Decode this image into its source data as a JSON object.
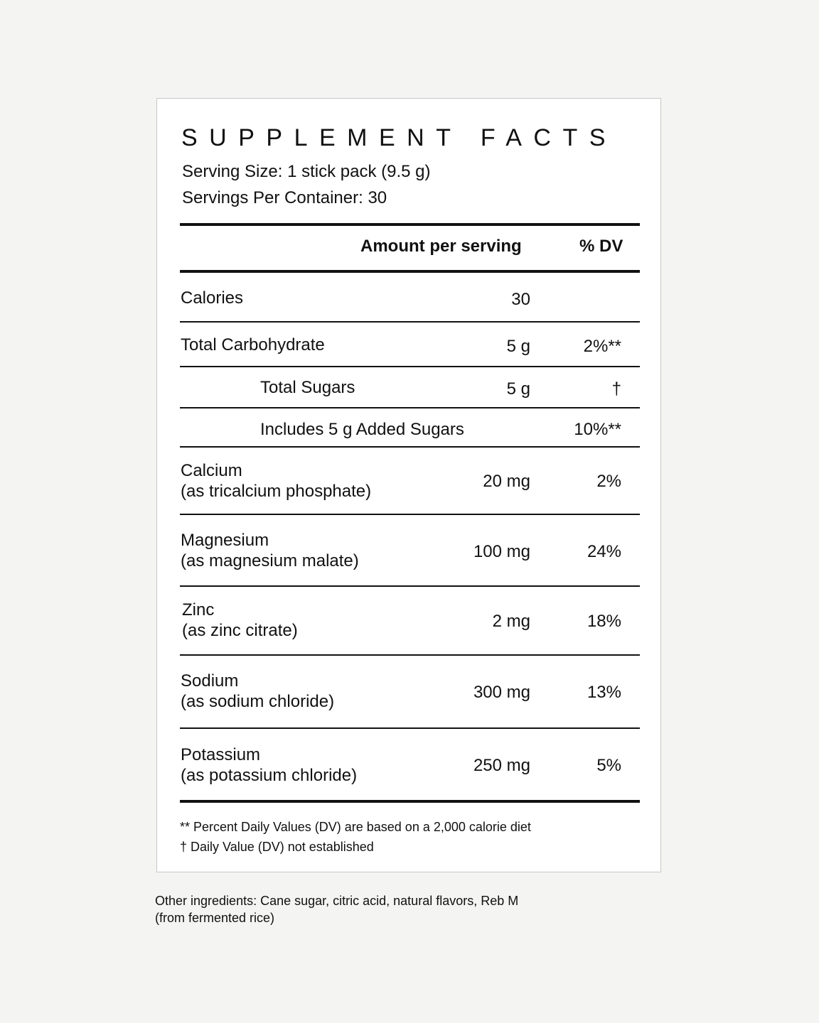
{
  "title": "SUPPLEMENT FACTS",
  "serving_size": "Serving Size: 1 stick pack (9.5 g)",
  "servings_per_container": "Servings Per Container: 30",
  "header": {
    "amount": "Amount per serving",
    "dv": "% DV"
  },
  "rows": [
    {
      "name": "Calories",
      "amount": "30",
      "dv": ""
    },
    {
      "name": "Total Carbohydrate",
      "amount": "5 g",
      "dv": "2%**"
    },
    {
      "name": "Total Sugars",
      "amount": "5 g",
      "dv": "†"
    },
    {
      "name": "Includes 5 g Added Sugars",
      "amount": "",
      "dv": "10%**"
    },
    {
      "name": "Calcium",
      "sub": "(as tricalcium phosphate)",
      "amount": "20 mg",
      "dv": "2%"
    },
    {
      "name": "Magnesium",
      "sub": "(as magnesium malate)",
      "amount": "100 mg",
      "dv": "24%"
    },
    {
      "name": "Zinc",
      "sub": "(as zinc citrate)",
      "amount": "2 mg",
      "dv": "18%"
    },
    {
      "name": "Sodium",
      "sub": "(as sodium chloride)",
      "amount": "300 mg",
      "dv": "13%"
    },
    {
      "name": "Potassium",
      "sub": "(as potassium chloride)",
      "amount": "250 mg",
      "dv": "5%"
    }
  ],
  "footnotes": {
    "dv_basis": "** Percent Daily Values (DV) are based on a 2,000 calorie diet",
    "not_established": "† Daily Value (DV) not established"
  },
  "other_ingredients": {
    "line1": "Other ingredients: Cane sugar, citric acid, natural flavors, Reb M",
    "line2": "(from fermented rice)"
  }
}
